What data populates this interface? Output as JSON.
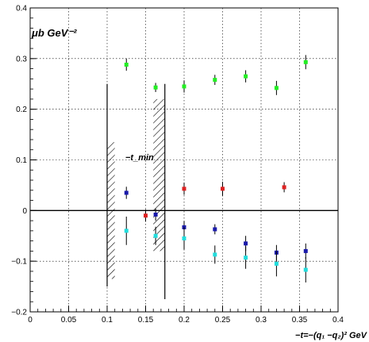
{
  "chart_data": {
    "type": "scatter",
    "ylabel": "μb GeV⁻²",
    "xlabel": "−t=−(q₁ −q₂)² GeV",
    "annotation": "−t_min",
    "xlim": [
      0,
      0.4
    ],
    "ylim": [
      -0.2,
      0.4
    ],
    "xticks": [
      "0",
      "0.05",
      "0.1",
      "0.15",
      "0.2",
      "0.25",
      "0.3",
      "0.35",
      "0.4"
    ],
    "yticks": [
      "0.4",
      "0.3",
      "0.2",
      "0.1",
      "0",
      "−0.1",
      "−0.2"
    ],
    "grid": true,
    "series": [
      {
        "color": "#22ee22",
        "x": [
          0.125,
          0.163,
          0.2,
          0.24,
          0.28,
          0.32,
          0.358
        ],
        "y": [
          0.288,
          0.243,
          0.245,
          0.258,
          0.265,
          0.242,
          0.293
        ],
        "err": [
          0.012,
          0.009,
          0.012,
          0.01,
          0.012,
          0.014,
          0.014
        ]
      },
      {
        "color": "#dd2222",
        "x": [
          0.15,
          0.2,
          0.25,
          0.33
        ],
        "y": [
          -0.01,
          0.043,
          0.043,
          0.046
        ],
        "err": [
          0.012,
          0.012,
          0.014,
          0.01
        ]
      },
      {
        "color": "#1a1aaa",
        "x": [
          0.125,
          0.163,
          0.2,
          0.24,
          0.28,
          0.32,
          0.358
        ],
        "y": [
          0.035,
          -0.008,
          -0.033,
          -0.037,
          -0.065,
          -0.083,
          -0.08
        ],
        "err": [
          0.012,
          0.012,
          0.012,
          0.01,
          0.015,
          0.015,
          0.015
        ]
      },
      {
        "color": "#22dddd",
        "x": [
          0.125,
          0.163,
          0.2,
          0.24,
          0.28,
          0.32,
          0.358
        ],
        "y": [
          -0.04,
          -0.05,
          -0.055,
          -0.087,
          -0.093,
          -0.105,
          -0.117
        ],
        "err": [
          0.028,
          0.018,
          0.022,
          0.018,
          0.022,
          0.025,
          0.025
        ]
      }
    ],
    "tmin_band_1": {
      "x": [
        0.1,
        0.11
      ],
      "y_lower": -0.15,
      "y_upper": 0.25,
      "y_hatch": [
        -0.135,
        0.135
      ]
    },
    "tmin_band_2": {
      "x": [
        0.16,
        0.175
      ],
      "y_lower": -0.175,
      "y_upper": 0.25,
      "y_hatch": [
        -0.08,
        0.22
      ]
    }
  }
}
